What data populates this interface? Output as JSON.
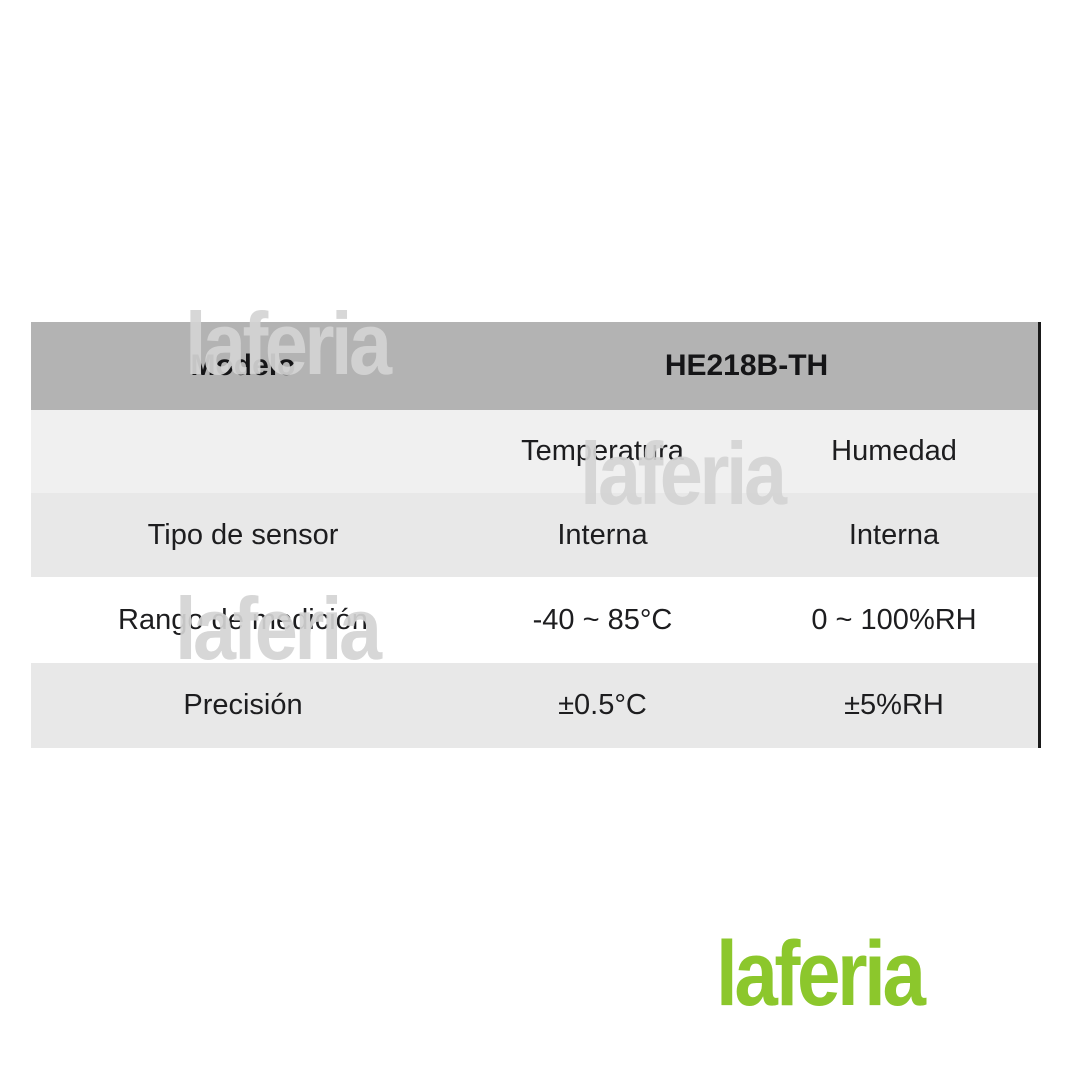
{
  "table": {
    "header": {
      "model_label": "Modelo",
      "model_value": "HE218B-TH"
    },
    "subheader": {
      "temperature": "Temperatura",
      "humidity": "Humedad"
    },
    "rows": [
      {
        "label": "Tipo de sensor",
        "temperature": "Interna",
        "humidity": "Interna"
      },
      {
        "label": "Rango de medición",
        "temperature": "-40 ~ 85°C",
        "humidity": "0 ~ 100%RH"
      },
      {
        "label": "Precisión",
        "temperature": "±0.5°C",
        "humidity": "±5%RH"
      }
    ]
  },
  "watermark": {
    "text": "laferia"
  },
  "logo": {
    "text": "laferia",
    "color": "#8cc72c"
  },
  "colors": {
    "header_bg": "#b3b3b3",
    "row_light_bg": "#f0f0f0",
    "row_gray_bg": "#e8e8e8",
    "row_white_bg": "#ffffff",
    "table_border": "#1a1a1a",
    "text": "#1d1d1f",
    "watermark": "#d4d4d4",
    "logo_green": "#8cc72c"
  }
}
